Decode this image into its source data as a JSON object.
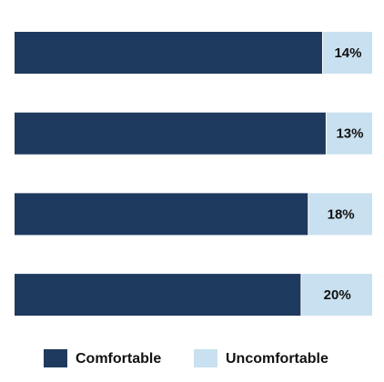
{
  "chart_data": {
    "type": "stacked-bar-horizontal",
    "categories": [
      null,
      null,
      null,
      null
    ],
    "series": [
      {
        "name": "Comfortable",
        "color": "#1f3a5f",
        "values": [
          86,
          87,
          82,
          80
        ]
      },
      {
        "name": "Uncomfortable",
        "color": "#c9e0f0",
        "values": [
          14,
          13,
          18,
          20
        ],
        "value_labels": [
          "14%",
          "13%",
          "18%",
          "20%"
        ]
      }
    ],
    "xlim": [
      0,
      100
    ],
    "legend": "bottom"
  }
}
